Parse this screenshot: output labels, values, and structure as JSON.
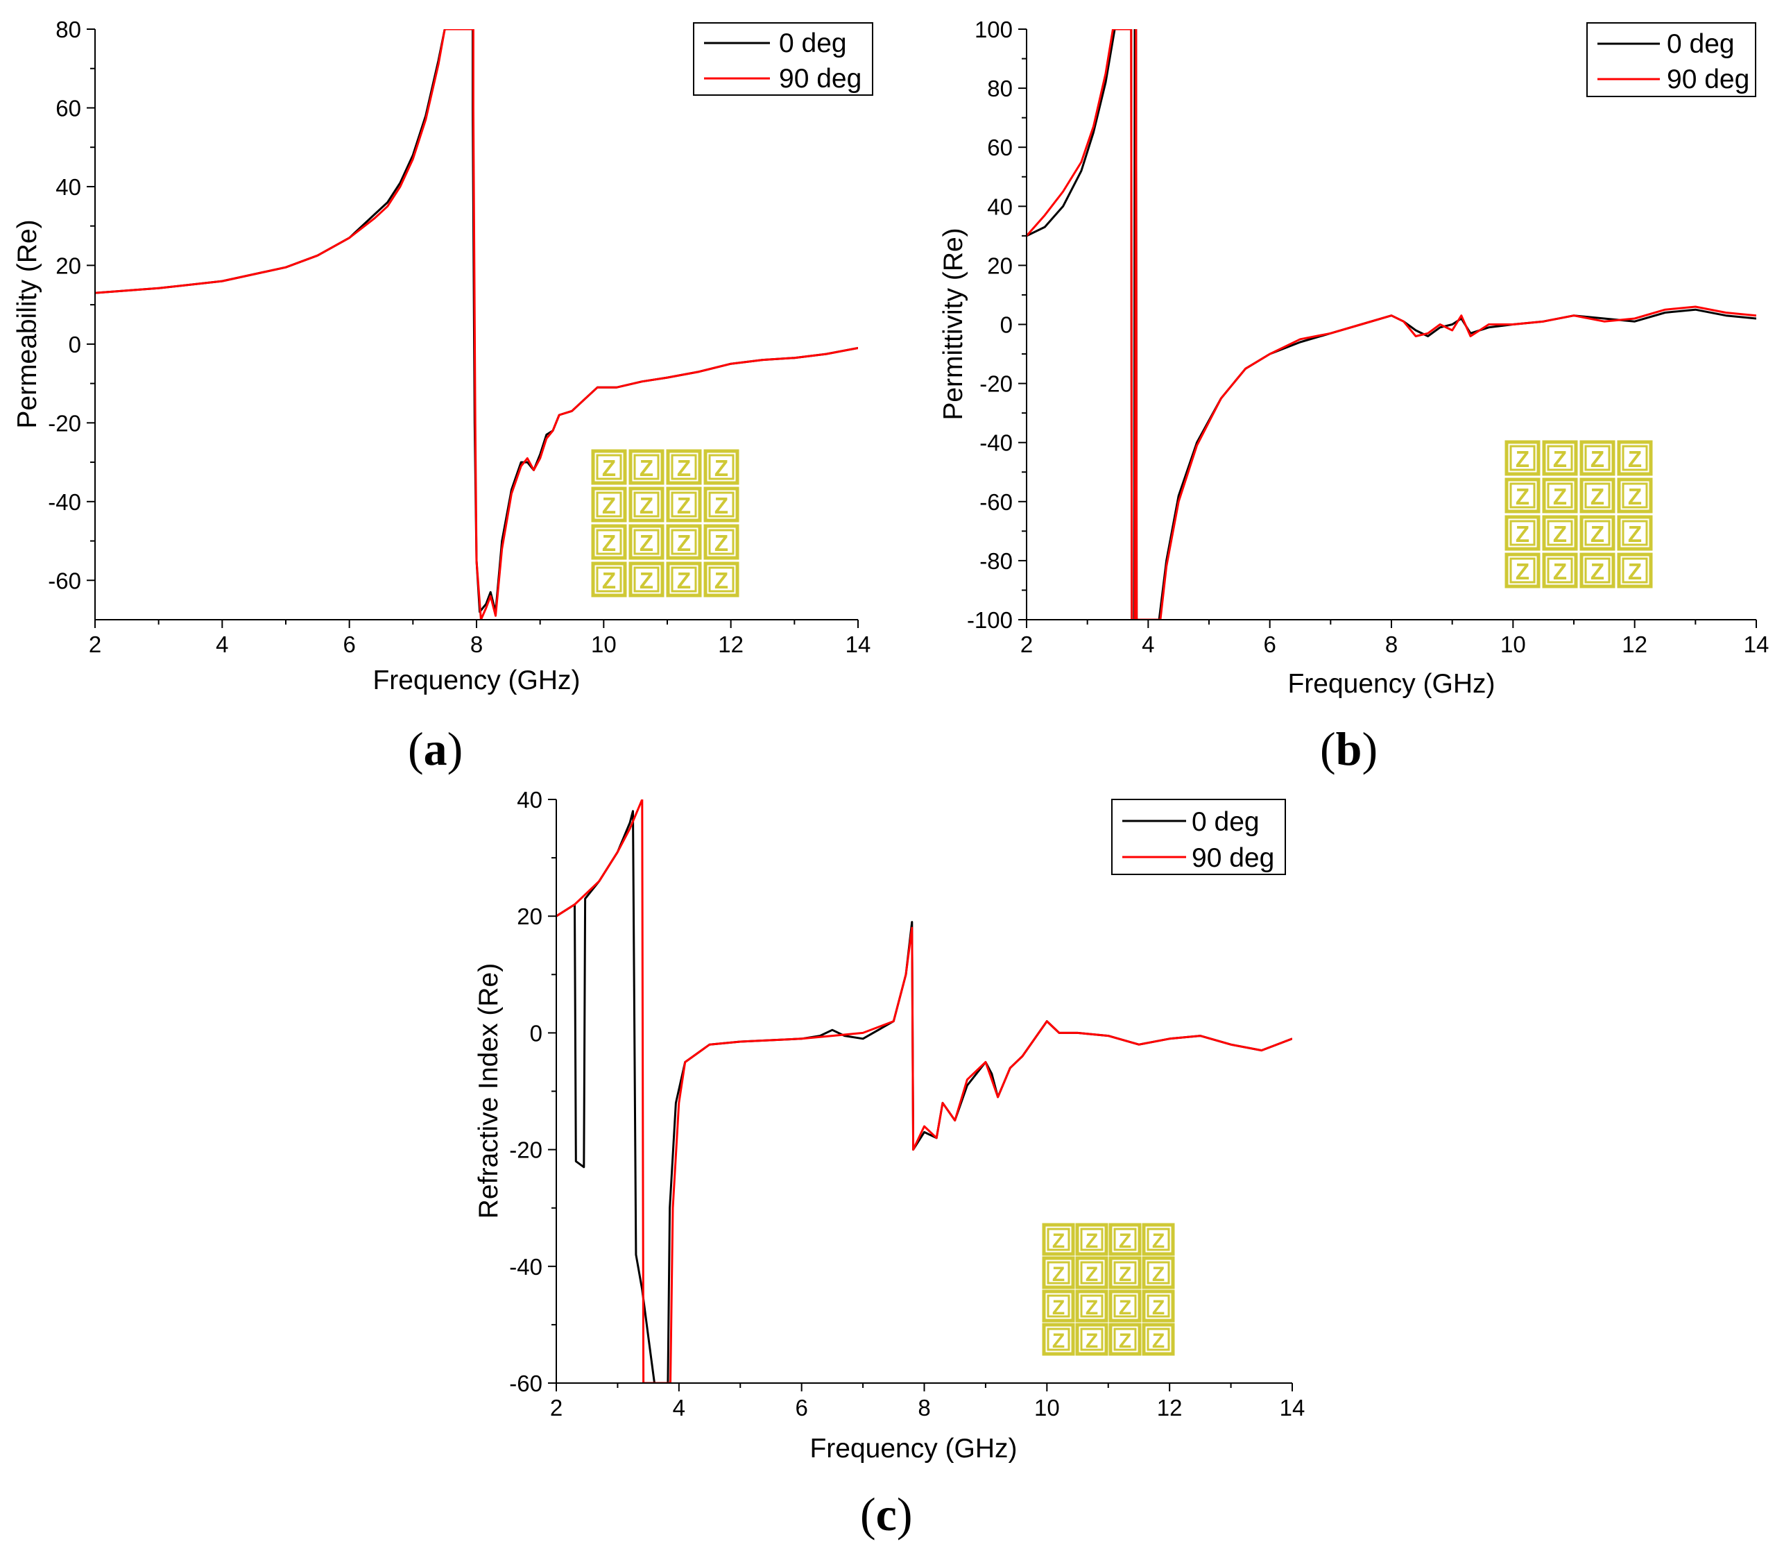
{
  "colors": {
    "deg0": "#000000",
    "deg90": "#ff0000",
    "inset": "#cfc835"
  },
  "inset": {
    "glyph": "Z",
    "rows": 4,
    "cols": 4
  },
  "chart_data": [
    {
      "id": "a",
      "type": "line",
      "panel_label": "a",
      "xlabel": "Frequency (GHz)",
      "ylabel": "Permeability (Re)",
      "xlim": [
        2,
        14
      ],
      "ylim": [
        -70,
        80
      ],
      "xticks": [
        2,
        4,
        6,
        8,
        10,
        12,
        14
      ],
      "yticks": [
        -60,
        -40,
        -20,
        0,
        20,
        40,
        60,
        80
      ],
      "legend": [
        "0 deg",
        "90 deg"
      ],
      "legend_position": "top-right",
      "series": [
        {
          "name": "0 deg",
          "color": "#000000",
          "points": [
            [
              2,
              13
            ],
            [
              3,
              14.2
            ],
            [
              4,
              16
            ],
            [
              5,
              19.5
            ],
            [
              5.5,
              22.5
            ],
            [
              6,
              27
            ],
            [
              6.4,
              33
            ],
            [
              6.6,
              36
            ],
            [
              6.8,
              41
            ],
            [
              7,
              48
            ],
            [
              7.2,
              58
            ],
            [
              7.4,
              72
            ],
            [
              7.5,
              80
            ],
            [
              7.94,
              80
            ],
            [
              7.94,
              60
            ],
            [
              7.97,
              -20
            ],
            [
              8.0,
              -55
            ],
            [
              8.05,
              -68
            ],
            [
              8.15,
              -66
            ],
            [
              8.22,
              -63
            ],
            [
              8.3,
              -68
            ],
            [
              8.4,
              -50
            ],
            [
              8.55,
              -37
            ],
            [
              8.7,
              -30
            ],
            [
              8.8,
              -30
            ],
            [
              8.9,
              -32
            ],
            [
              9.0,
              -28
            ],
            [
              9.1,
              -23
            ],
            [
              9.2,
              -22
            ],
            [
              9.3,
              -18
            ],
            [
              9.5,
              -17
            ],
            [
              9.7,
              -14
            ],
            [
              9.9,
              -11
            ],
            [
              10.2,
              -11
            ],
            [
              10.6,
              -9.5
            ],
            [
              11,
              -8.5
            ],
            [
              11.5,
              -7
            ],
            [
              12,
              -5
            ],
            [
              12.5,
              -4
            ],
            [
              13,
              -3.5
            ],
            [
              13.5,
              -2.5
            ],
            [
              14,
              -1
            ]
          ]
        },
        {
          "name": "90 deg",
          "color": "#ff0000",
          "points": [
            [
              2,
              13
            ],
            [
              3,
              14.2
            ],
            [
              4,
              16
            ],
            [
              5,
              19.5
            ],
            [
              5.5,
              22.5
            ],
            [
              6,
              27
            ],
            [
              6.4,
              32
            ],
            [
              6.6,
              35
            ],
            [
              6.8,
              40
            ],
            [
              7,
              47
            ],
            [
              7.2,
              57
            ],
            [
              7.4,
              71
            ],
            [
              7.5,
              80
            ],
            [
              7.95,
              80
            ],
            [
              7.95,
              60
            ],
            [
              7.98,
              -20
            ],
            [
              8.0,
              -55
            ],
            [
              8.07,
              -70
            ],
            [
              8.15,
              -67
            ],
            [
              8.22,
              -64
            ],
            [
              8.3,
              -69
            ],
            [
              8.4,
              -52
            ],
            [
              8.55,
              -38
            ],
            [
              8.7,
              -31
            ],
            [
              8.8,
              -29
            ],
            [
              8.9,
              -32
            ],
            [
              9.0,
              -29
            ],
            [
              9.1,
              -24
            ],
            [
              9.2,
              -22
            ],
            [
              9.3,
              -18
            ],
            [
              9.5,
              -17
            ],
            [
              9.7,
              -14
            ],
            [
              9.9,
              -11
            ],
            [
              10.2,
              -11
            ],
            [
              10.6,
              -9.5
            ],
            [
              11,
              -8.5
            ],
            [
              11.5,
              -7
            ],
            [
              12,
              -5
            ],
            [
              12.5,
              -4
            ],
            [
              13,
              -3.5
            ],
            [
              13.5,
              -2.5
            ],
            [
              14,
              -1
            ]
          ]
        }
      ]
    },
    {
      "id": "b",
      "type": "line",
      "panel_label": "b",
      "xlabel": "Frequency (GHz)",
      "ylabel": "Permittivity (Re)",
      "xlim": [
        2,
        14
      ],
      "ylim": [
        -100,
        100
      ],
      "xticks": [
        2,
        4,
        6,
        8,
        10,
        12,
        14
      ],
      "yticks": [
        -100,
        -80,
        -60,
        -40,
        -20,
        0,
        20,
        40,
        60,
        80,
        100
      ],
      "legend": [
        "0 deg",
        "90 deg"
      ],
      "legend_position": "top-right",
      "series": [
        {
          "name": "0 deg",
          "color": "#000000",
          "points": [
            [
              2,
              30
            ],
            [
              2.3,
              33
            ],
            [
              2.6,
              40
            ],
            [
              2.9,
              52
            ],
            [
              3.1,
              65
            ],
            [
              3.3,
              82
            ],
            [
              3.45,
              100
            ],
            [
              3.72,
              100
            ],
            [
              3.73,
              -100
            ],
            [
              3.77,
              -100
            ],
            [
              3.78,
              100
            ],
            [
              3.8,
              100
            ],
            [
              3.81,
              -100
            ],
            [
              4.18,
              -100
            ],
            [
              4.3,
              -80
            ],
            [
              4.5,
              -58
            ],
            [
              4.8,
              -40
            ],
            [
              5.2,
              -25
            ],
            [
              5.6,
              -15
            ],
            [
              6,
              -10
            ],
            [
              6.5,
              -6
            ],
            [
              7,
              -3
            ],
            [
              7.5,
              0
            ],
            [
              8,
              3
            ],
            [
              8.2,
              1
            ],
            [
              8.4,
              -2
            ],
            [
              8.6,
              -4
            ],
            [
              8.8,
              -1
            ],
            [
              9.0,
              0
            ],
            [
              9.15,
              2
            ],
            [
              9.3,
              -3
            ],
            [
              9.6,
              -1
            ],
            [
              10,
              0
            ],
            [
              10.5,
              1
            ],
            [
              11,
              3
            ],
            [
              11.5,
              2
            ],
            [
              12,
              1
            ],
            [
              12.5,
              4
            ],
            [
              13,
              5
            ],
            [
              13.5,
              3
            ],
            [
              14,
              2
            ]
          ]
        },
        {
          "name": "90 deg",
          "color": "#ff0000",
          "points": [
            [
              2,
              30
            ],
            [
              2.3,
              37
            ],
            [
              2.6,
              45
            ],
            [
              2.9,
              55
            ],
            [
              3.1,
              67
            ],
            [
              3.3,
              85
            ],
            [
              3.42,
              100
            ],
            [
              3.72,
              100
            ],
            [
              3.73,
              -100
            ],
            [
              3.78,
              -100
            ],
            [
              3.8,
              100
            ],
            [
              3.81,
              -100
            ],
            [
              4.2,
              -100
            ],
            [
              4.3,
              -82
            ],
            [
              4.5,
              -60
            ],
            [
              4.8,
              -41
            ],
            [
              5.2,
              -25
            ],
            [
              5.6,
              -15
            ],
            [
              6,
              -10
            ],
            [
              6.5,
              -5
            ],
            [
              7,
              -3
            ],
            [
              7.5,
              0
            ],
            [
              8,
              3
            ],
            [
              8.2,
              1
            ],
            [
              8.4,
              -4
            ],
            [
              8.6,
              -3
            ],
            [
              8.8,
              0
            ],
            [
              9.0,
              -2
            ],
            [
              9.15,
              3
            ],
            [
              9.3,
              -4
            ],
            [
              9.6,
              0
            ],
            [
              10,
              0
            ],
            [
              10.5,
              1
            ],
            [
              11,
              3
            ],
            [
              11.5,
              1
            ],
            [
              12,
              2
            ],
            [
              12.5,
              5
            ],
            [
              13,
              6
            ],
            [
              13.5,
              4
            ],
            [
              14,
              3
            ]
          ]
        }
      ]
    },
    {
      "id": "c",
      "type": "line",
      "panel_label": "c",
      "xlabel": "Frequency (GHz)",
      "ylabel": "Refractive Index (Re)",
      "xlim": [
        2,
        14
      ],
      "ylim": [
        -60,
        40
      ],
      "xticks": [
        2,
        4,
        6,
        8,
        10,
        12,
        14
      ],
      "yticks": [
        -60,
        -40,
        -20,
        0,
        20,
        40
      ],
      "legend": [
        "0 deg",
        "90 deg"
      ],
      "legend_position": "top-right",
      "series": [
        {
          "name": "0 deg",
          "color": "#000000",
          "points": [
            [
              2,
              20
            ],
            [
              2.3,
              22
            ],
            [
              2.32,
              -22
            ],
            [
              2.45,
              -23
            ],
            [
              2.47,
              23
            ],
            [
              2.7,
              26
            ],
            [
              3.0,
              31
            ],
            [
              3.2,
              36
            ],
            [
              3.25,
              38
            ],
            [
              3.3,
              -38
            ],
            [
              3.4,
              -44
            ],
            [
              3.5,
              -52
            ],
            [
              3.6,
              -60
            ],
            [
              3.82,
              -60
            ],
            [
              3.85,
              -30
            ],
            [
              3.95,
              -12
            ],
            [
              4.1,
              -5
            ],
            [
              4.5,
              -2
            ],
            [
              5,
              -1.5
            ],
            [
              6,
              -1
            ],
            [
              6.3,
              -0.5
            ],
            [
              6.5,
              0.5
            ],
            [
              6.7,
              -0.5
            ],
            [
              7.0,
              -1
            ],
            [
              7.5,
              2
            ],
            [
              7.7,
              10
            ],
            [
              7.8,
              19
            ],
            [
              7.82,
              -20
            ],
            [
              8.0,
              -17
            ],
            [
              8.2,
              -18
            ],
            [
              8.3,
              -12
            ],
            [
              8.5,
              -15
            ],
            [
              8.7,
              -9
            ],
            [
              9.0,
              -5
            ],
            [
              9.1,
              -7
            ],
            [
              9.2,
              -11
            ],
            [
              9.4,
              -6
            ],
            [
              9.6,
              -4
            ],
            [
              10,
              2
            ],
            [
              10.2,
              0
            ],
            [
              10.5,
              0
            ],
            [
              11,
              -0.5
            ],
            [
              11.5,
              -2
            ],
            [
              12,
              -1
            ],
            [
              12.5,
              -0.5
            ],
            [
              13,
              -2
            ],
            [
              13.5,
              -3
            ],
            [
              14,
              -1
            ]
          ]
        },
        {
          "name": "90 deg",
          "color": "#ff0000",
          "points": [
            [
              2,
              20
            ],
            [
              2.3,
              22
            ],
            [
              2.5,
              24
            ],
            [
              2.7,
              26
            ],
            [
              3.0,
              31
            ],
            [
              3.2,
              35
            ],
            [
              3.4,
              40
            ],
            [
              3.42,
              -60
            ],
            [
              3.86,
              -60
            ],
            [
              3.9,
              -30
            ],
            [
              4.0,
              -12
            ],
            [
              4.1,
              -5
            ],
            [
              4.5,
              -2
            ],
            [
              5,
              -1.5
            ],
            [
              6,
              -1
            ],
            [
              6.5,
              -0.5
            ],
            [
              7.0,
              0
            ],
            [
              7.5,
              2
            ],
            [
              7.7,
              10
            ],
            [
              7.8,
              18
            ],
            [
              7.82,
              -20
            ],
            [
              8.0,
              -16
            ],
            [
              8.2,
              -18
            ],
            [
              8.3,
              -12
            ],
            [
              8.5,
              -15
            ],
            [
              8.7,
              -8
            ],
            [
              9.0,
              -5
            ],
            [
              9.1,
              -8
            ],
            [
              9.2,
              -11
            ],
            [
              9.4,
              -6
            ],
            [
              9.6,
              -4
            ],
            [
              10,
              2
            ],
            [
              10.2,
              0
            ],
            [
              10.5,
              0
            ],
            [
              11,
              -0.5
            ],
            [
              11.5,
              -2
            ],
            [
              12,
              -1
            ],
            [
              12.5,
              -0.5
            ],
            [
              13,
              -2
            ],
            [
              13.5,
              -3
            ],
            [
              14,
              -1
            ]
          ]
        }
      ]
    }
  ]
}
